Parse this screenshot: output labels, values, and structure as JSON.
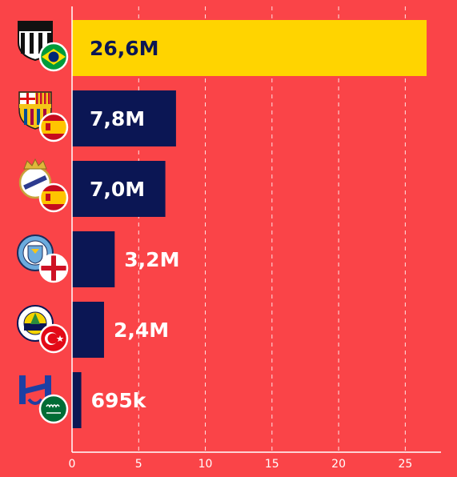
{
  "chart_data": {
    "type": "bar",
    "orientation": "horizontal",
    "title": "",
    "xlabel": "",
    "ylabel": "",
    "xlim": [
      0,
      27.5
    ],
    "x_ticks": [
      0,
      5,
      10,
      15,
      20,
      25
    ],
    "x_tick_labels": [
      "0",
      "5",
      "10",
      "15",
      "20",
      "25"
    ],
    "grid": "vertical dashed",
    "categories": [
      "Santos",
      "FC Barcelona",
      "Real Madrid",
      "Manchester City",
      "Fenerbahçe",
      "Al Hilal"
    ],
    "values": [
      26.6,
      7.8,
      7.0,
      3.2,
      2.4,
      0.695
    ],
    "data_labels": [
      "26,6M",
      "7,8M",
      "7,0M",
      "3,2M",
      "2,4M",
      "695k"
    ],
    "countries": [
      "brazil",
      "spain",
      "spain",
      "england",
      "turkey",
      "saudi-arabia"
    ],
    "bar_colors": [
      "#ffd400",
      "#0b1654",
      "#0b1654",
      "#0b1654",
      "#0b1654",
      "#0b1654"
    ],
    "label_colors_inside": [
      "#0b1654",
      "#ffffff",
      "#ffffff",
      "#ffffff",
      "#ffffff",
      "#ffffff"
    ],
    "logo_icons": [
      "santos-crest-icon",
      "barcelona-crest-icon",
      "real-madrid-crest-icon",
      "manchester-city-crest-icon",
      "fenerbahce-crest-icon",
      "al-hilal-crest-icon"
    ],
    "flag_icons": [
      "brazil-flag-icon",
      "spain-flag-icon",
      "spain-flag-icon",
      "england-flag-icon",
      "turkey-flag-icon",
      "saudi-arabia-flag-icon"
    ]
  },
  "colors": {
    "background": "#fa4448",
    "bar_highlight": "#ffd400",
    "bar_default": "#0b1654",
    "grid": "#ffffff",
    "axis": "#ffffff"
  }
}
